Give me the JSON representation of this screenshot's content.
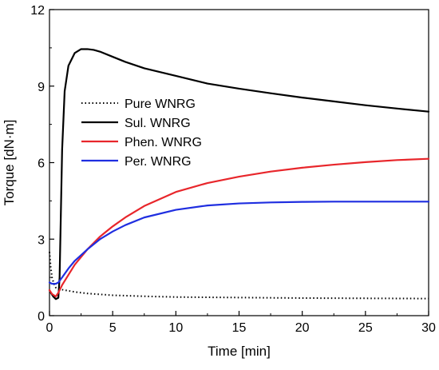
{
  "chart_data": {
    "type": "line",
    "xlabel": "Time [min]",
    "ylabel": "Torque [dN·m]",
    "xlim": [
      0,
      30
    ],
    "ylim": [
      0,
      12
    ],
    "xticks": [
      0,
      5,
      10,
      15,
      20,
      25,
      30
    ],
    "yticks": [
      0,
      3,
      6,
      9,
      12
    ],
    "grid": false,
    "legend_position": "center-left",
    "series": [
      {
        "name": "Pure WNRG",
        "color": "#000000",
        "style": "dotted",
        "x": [
          0,
          0.1,
          0.2,
          0.35,
          0.5,
          1,
          2,
          3,
          5,
          7.5,
          10,
          15,
          20,
          25,
          30
        ],
        "y": [
          2.5,
          1.9,
          1.5,
          1.25,
          1.1,
          1.02,
          0.93,
          0.87,
          0.8,
          0.76,
          0.73,
          0.71,
          0.69,
          0.68,
          0.67
        ]
      },
      {
        "name": "Sul. WNRG",
        "color": "#000000",
        "style": "solid",
        "x": [
          0,
          0.1,
          0.3,
          0.5,
          0.7,
          0.8,
          0.9,
          1.0,
          1.2,
          1.5,
          2,
          2.5,
          3,
          3.5,
          4,
          5,
          6,
          7.5,
          10,
          12.5,
          15,
          17.5,
          20,
          22.5,
          25,
          27.5,
          30
        ],
        "y": [
          1.0,
          0.9,
          0.75,
          0.65,
          0.7,
          1.5,
          4.0,
          6.5,
          8.8,
          9.8,
          10.3,
          10.45,
          10.45,
          10.42,
          10.35,
          10.15,
          9.95,
          9.7,
          9.4,
          9.1,
          8.9,
          8.72,
          8.55,
          8.4,
          8.25,
          8.12,
          8.0
        ]
      },
      {
        "name": "Phen. WNRG",
        "color": "#e8262b",
        "style": "solid",
        "x": [
          0,
          0.2,
          0.5,
          0.7,
          1,
          1.5,
          2,
          3,
          4,
          5,
          6,
          7.5,
          10,
          12.5,
          15,
          17.5,
          20,
          22.5,
          25,
          27.5,
          30
        ],
        "y": [
          1.0,
          0.85,
          0.75,
          0.9,
          1.2,
          1.6,
          2.0,
          2.6,
          3.1,
          3.5,
          3.85,
          4.3,
          4.85,
          5.2,
          5.45,
          5.65,
          5.8,
          5.92,
          6.02,
          6.1,
          6.15
        ]
      },
      {
        "name": "Per. WNRG",
        "color": "#1f2ee0",
        "style": "solid",
        "x": [
          0,
          0.2,
          0.5,
          0.7,
          1,
          1.5,
          2,
          3,
          4,
          5,
          6,
          7.5,
          10,
          12.5,
          15,
          17.5,
          20,
          22.5,
          25,
          27.5,
          30
        ],
        "y": [
          1.3,
          1.25,
          1.25,
          1.3,
          1.5,
          1.85,
          2.15,
          2.6,
          3.0,
          3.3,
          3.55,
          3.85,
          4.15,
          4.32,
          4.4,
          4.44,
          4.46,
          4.47,
          4.47,
          4.47,
          4.47
        ]
      }
    ]
  }
}
